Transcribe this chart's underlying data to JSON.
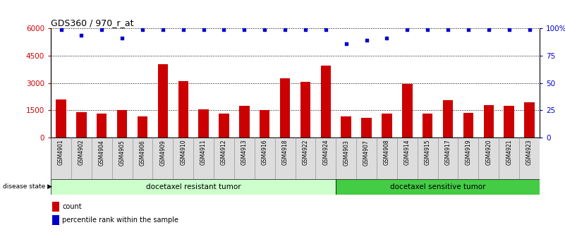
{
  "title": "GDS360 / 970_r_at",
  "samples": [
    "GSM4901",
    "GSM4902",
    "GSM4904",
    "GSM4905",
    "GSM4906",
    "GSM4909",
    "GSM4910",
    "GSM4911",
    "GSM4912",
    "GSM4913",
    "GSM4916",
    "GSM4918",
    "GSM4922",
    "GSM4924",
    "GSM4903",
    "GSM4907",
    "GSM4908",
    "GSM4914",
    "GSM4915",
    "GSM4917",
    "GSM4919",
    "GSM4920",
    "GSM4921",
    "GSM4923"
  ],
  "counts": [
    2100,
    1400,
    1300,
    1500,
    1150,
    4050,
    3100,
    1550,
    1300,
    1750,
    1500,
    3250,
    3050,
    3950,
    1150,
    1100,
    1300,
    2950,
    1300,
    2050,
    1350,
    1800,
    1750,
    1950
  ],
  "percentile_ranks": [
    99,
    94,
    99,
    91,
    99,
    99,
    99,
    99,
    99,
    99,
    99,
    99,
    99,
    99,
    86,
    89,
    91,
    99,
    99,
    99,
    99,
    99,
    99,
    99
  ],
  "bar_color": "#cc0000",
  "dot_color": "#0000cc",
  "ylim_left": [
    0,
    6000
  ],
  "ylim_right": [
    0,
    100
  ],
  "yticks_left": [
    0,
    1500,
    3000,
    4500,
    6000
  ],
  "yticks_right": [
    0,
    25,
    50,
    75,
    100
  ],
  "ytick_labels_left": [
    "0",
    "1500",
    "3000",
    "4500",
    "6000"
  ],
  "ytick_labels_right": [
    "0",
    "25",
    "50",
    "75",
    "100%"
  ],
  "resistant_label": "docetaxel resistant tumor",
  "sensitive_label": "docetaxel sensitive tumor",
  "disease_state_label": "disease state",
  "n_resistant": 14,
  "n_sensitive": 10,
  "legend_count_label": "count",
  "legend_percentile_label": "percentile rank within the sample",
  "bar_width": 0.5,
  "background_color": "#ffffff",
  "grid_color": "#000000",
  "resistant_bg": "#ccffcc",
  "sensitive_bg": "#44cc44",
  "xtick_bg": "#dddddd"
}
